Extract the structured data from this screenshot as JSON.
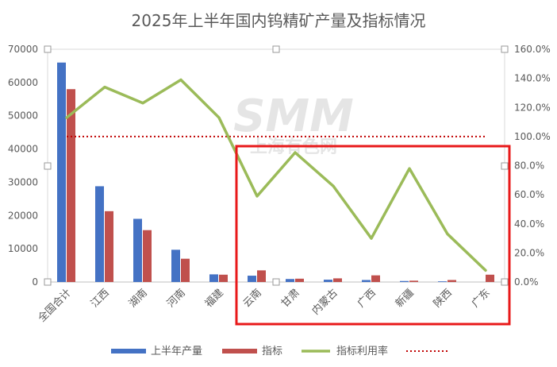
{
  "chart_data": {
    "type": "bar+line",
    "title": "2025年上半年国内钨精矿产量及指标情况",
    "categories": [
      "全国合计",
      "江西",
      "湖南",
      "河南",
      "福建",
      "云南",
      "甘肃",
      "内蒙古",
      "广西",
      "新疆",
      "陕西",
      "广东"
    ],
    "series": [
      {
        "name": "上半年产量",
        "type": "bar",
        "axis": "left",
        "color": "#4472C4",
        "values": [
          66000,
          28800,
          19000,
          9700,
          2300,
          1900,
          900,
          700,
          600,
          300,
          200,
          0
        ]
      },
      {
        "name": "指标",
        "type": "bar",
        "axis": "left",
        "color": "#C0504D",
        "values": [
          58000,
          21300,
          15600,
          7000,
          2200,
          3500,
          1000,
          1100,
          2000,
          400,
          600,
          2200
        ]
      },
      {
        "name": "指标利用率",
        "type": "line",
        "axis": "right",
        "color": "#9BBB59",
        "values": [
          113,
          134,
          123,
          139,
          113,
          59,
          89,
          66,
          30,
          78,
          33,
          8
        ]
      }
    ],
    "reference_line": {
      "value": 100,
      "axis": "right",
      "color": "#C00000",
      "style": "dotted"
    },
    "yaxis_left": {
      "min": 0,
      "max": 70000,
      "ticks": [
        "0",
        "10000",
        "20000",
        "30000",
        "40000",
        "50000",
        "60000",
        "70000"
      ]
    },
    "yaxis_right": {
      "min": 0,
      "max": 160,
      "ticks": [
        "0.0%",
        "20.0%",
        "40.0%",
        "60.0%",
        "80.0%",
        "100.0%",
        "120.0%",
        "140.0%",
        "160.0%"
      ]
    },
    "legend": {
      "position": "bottom",
      "entries": [
        "上半年产量",
        "指标",
        "指标利用率",
        ""
      ]
    },
    "grid": false,
    "highlight_box": {
      "color": "#E8191A",
      "covers_categories": [
        "云南",
        "甘肃",
        "内蒙古",
        "广西",
        "新疆",
        "陕西",
        "广东"
      ]
    },
    "watermark": {
      "text_main": "SMM",
      "text_sub": "上海有色网"
    }
  }
}
